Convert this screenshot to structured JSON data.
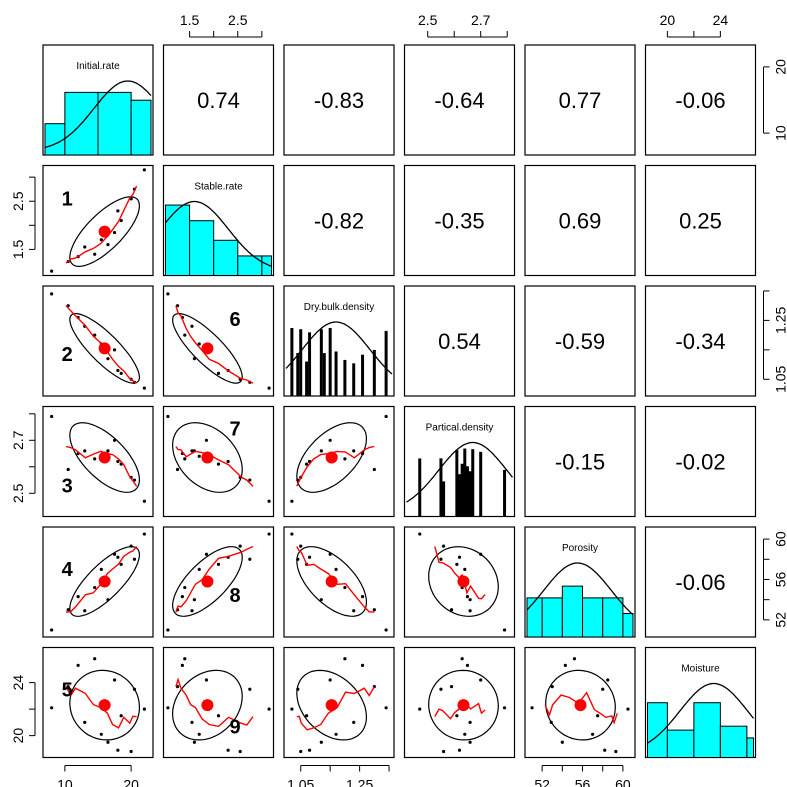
{
  "chart_data": {
    "type": "scatter",
    "title": "",
    "variables": [
      "Initial.rate",
      "Stable.rate",
      "Dry.bulk.density",
      "Partical.density",
      "Porosity",
      "Moisture"
    ],
    "correlations": [
      [
        null,
        0.74,
        -0.83,
        -0.64,
        0.77,
        -0.06
      ],
      [
        null,
        null,
        -0.82,
        -0.35,
        0.69,
        0.25
      ],
      [
        null,
        null,
        null,
        0.54,
        -0.59,
        -0.34
      ],
      [
        null,
        null,
        null,
        null,
        -0.15,
        -0.02
      ],
      [
        null,
        null,
        null,
        null,
        null,
        -0.06
      ],
      [
        null,
        null,
        null,
        null,
        null,
        null
      ]
    ],
    "correlation_labels": [
      [
        null,
        "0.74",
        "-0.83",
        "-0.64",
        "0.77",
        "-0.06"
      ],
      [
        null,
        null,
        "-0.82",
        "-0.35",
        "0.69",
        "0.25"
      ],
      [
        null,
        null,
        null,
        "0.54",
        "-0.59",
        "-0.34"
      ],
      [
        null,
        null,
        null,
        null,
        "-0.15",
        "-0.02"
      ],
      [
        null,
        null,
        null,
        null,
        null,
        "-0.06"
      ],
      [
        null,
        null,
        null,
        null,
        null,
        null
      ]
    ],
    "panel_numbers": [
      {
        "row": 1,
        "col": 0,
        "label": "1"
      },
      {
        "row": 2,
        "col": 0,
        "label": "2"
      },
      {
        "row": 3,
        "col": 0,
        "label": "3"
      },
      {
        "row": 4,
        "col": 0,
        "label": "4"
      },
      {
        "row": 5,
        "col": 0,
        "label": "5"
      },
      {
        "row": 2,
        "col": 1,
        "label": "6"
      },
      {
        "row": 3,
        "col": 1,
        "label": "7"
      },
      {
        "row": 4,
        "col": 1,
        "label": "8"
      },
      {
        "row": 5,
        "col": 1,
        "label": "9"
      }
    ],
    "ranges": [
      [
        7,
        23
      ],
      [
        1.0,
        3.2
      ],
      [
        1.0,
        1.36
      ],
      [
        2.42,
        2.82
      ],
      [
        50.5,
        61
      ],
      [
        18.5,
        26.5
      ]
    ],
    "ticks": [
      {
        "values": [
          10,
          20
        ],
        "labels": [
          "10",
          "20"
        ]
      },
      {
        "values": [
          1.5,
          2.0,
          2.5,
          3.0
        ],
        "labels": [
          "1.5",
          "",
          "2.5",
          ""
        ]
      },
      {
        "values": [
          1.05,
          1.15,
          1.25,
          1.35
        ],
        "labels": [
          "1.05",
          "",
          "1.25",
          ""
        ]
      },
      {
        "values": [
          2.5,
          2.6,
          2.7,
          2.8
        ],
        "labels": [
          "2.5",
          "",
          "2.7",
          ""
        ]
      },
      {
        "values": [
          52,
          54,
          56,
          58,
          60
        ],
        "labels": [
          "52",
          "",
          "56",
          "",
          "60"
        ]
      },
      {
        "values": [
          20,
          22,
          24
        ],
        "labels": [
          "20",
          "",
          "24"
        ]
      }
    ],
    "axis_placement": {
      "bottom": [
        0,
        2,
        4
      ],
      "top": [
        1,
        3,
        5
      ],
      "left": [
        1,
        3,
        5
      ],
      "right": [
        0,
        2,
        4
      ]
    },
    "observations": [
      {
        "Initial.rate": 8.0,
        "Stable.rate": 1.05,
        "Dry.bulk.density": 1.34,
        "Partical.density": 2.79,
        "Porosity": 51.0,
        "Moisture": 22.1
      },
      {
        "Initial.rate": 10.5,
        "Stable.rate": 1.25,
        "Dry.bulk.density": 1.3,
        "Partical.density": 2.59,
        "Porosity": 53.0,
        "Moisture": 23.7
      },
      {
        "Initial.rate": 12.0,
        "Stable.rate": 1.35,
        "Dry.bulk.density": 1.26,
        "Partical.density": 2.65,
        "Porosity": 54.3,
        "Moisture": 25.3
      },
      {
        "Initial.rate": 13.0,
        "Stable.rate": 1.55,
        "Dry.bulk.density": 1.23,
        "Partical.density": 2.66,
        "Porosity": 52.9,
        "Moisture": 21.0
      },
      {
        "Initial.rate": 14.5,
        "Stable.rate": 1.4,
        "Dry.bulk.density": 1.2,
        "Partical.density": 2.63,
        "Porosity": 55.2,
        "Moisture": 25.8
      },
      {
        "Initial.rate": 15.5,
        "Stable.rate": 1.7,
        "Dry.bulk.density": 1.17,
        "Partical.density": 2.64,
        "Porosity": 57.0,
        "Moisture": 20.1
      },
      {
        "Initial.rate": 16.5,
        "Stable.rate": 1.6,
        "Dry.bulk.density": 1.12,
        "Partical.density": 2.66,
        "Porosity": 54.0,
        "Moisture": 19.5
      },
      {
        "Initial.rate": 17.5,
        "Stable.rate": 1.85,
        "Dry.bulk.density": 1.15,
        "Partical.density": 2.7,
        "Porosity": 58.5,
        "Moisture": 24.2
      },
      {
        "Initial.rate": 18.0,
        "Stable.rate": 2.3,
        "Dry.bulk.density": 1.08,
        "Partical.density": 2.62,
        "Porosity": 58.2,
        "Moisture": 18.9
      },
      {
        "Initial.rate": 18.5,
        "Stable.rate": 2.1,
        "Dry.bulk.density": 1.07,
        "Partical.density": 2.61,
        "Porosity": 57.5,
        "Moisture": 21.5
      },
      {
        "Initial.rate": 20.0,
        "Stable.rate": 2.55,
        "Dry.bulk.density": 1.05,
        "Partical.density": 2.56,
        "Porosity": 59.3,
        "Moisture": 18.8
      },
      {
        "Initial.rate": 20.5,
        "Stable.rate": 2.75,
        "Dry.bulk.density": 1.04,
        "Partical.density": 2.55,
        "Porosity": 58.0,
        "Moisture": 23.5
      },
      {
        "Initial.rate": 22.0,
        "Stable.rate": 3.15,
        "Dry.bulk.density": 1.02,
        "Partical.density": 2.47,
        "Porosity": 60.5,
        "Moisture": 22.0
      }
    ],
    "means": [
      16.0,
      1.87,
      1.155,
      2.635,
      55.8,
      22.3
    ],
    "ellipse_corr": [
      [
        1,
        0.74,
        -0.83,
        -0.64,
        0.77,
        -0.06
      ],
      [
        0.74,
        1,
        -0.82,
        -0.35,
        0.69,
        0.25
      ],
      [
        -0.83,
        -0.82,
        1,
        0.54,
        -0.59,
        -0.34
      ],
      [
        -0.64,
        -0.35,
        0.54,
        1,
        -0.15,
        -0.02
      ],
      [
        0.77,
        0.69,
        -0.59,
        -0.15,
        1,
        -0.06
      ],
      [
        -0.06,
        0.25,
        -0.34,
        -0.02,
        -0.06,
        1
      ]
    ],
    "histograms": [
      {
        "breaks": [
          7,
          10,
          15,
          20,
          23
        ],
        "density": [
          0.4,
          0.8,
          0.8,
          0.7
        ],
        "curve_peak": 19.5
      },
      {
        "breaks": [
          1.0,
          1.5,
          2.0,
          2.5,
          3.0,
          3.2
        ],
        "density": [
          0.9,
          0.7,
          0.45,
          0.25,
          0.25
        ],
        "curve_peak": 1.6
      },
      {
        "breaks": [
          1.0,
          1.36
        ],
        "density": [
          0.0
        ],
        "curve_peak": 1.17
      },
      {
        "breaks": [
          2.42,
          2.82
        ],
        "density": [
          0.0
        ],
        "curve_peak": 2.67
      },
      {
        "breaks": [
          50.5,
          52,
          54,
          56,
          58,
          60,
          61
        ],
        "density": [
          0.5,
          0.5,
          0.65,
          0.5,
          0.5,
          0.3
        ],
        "curve_peak": 55.5
      },
      {
        "breaks": [
          18.5,
          20,
          22,
          24,
          26,
          26.5
        ],
        "density": [
          0.7,
          0.35,
          0.7,
          0.4,
          0.25
        ],
        "curve_peak": 23.5
      }
    ],
    "rug_marks": [
      {
        "var": 2,
        "x": [
          1.02,
          1.04,
          1.05,
          1.07,
          1.08,
          1.12,
          1.13,
          1.15,
          1.17,
          1.2,
          1.23,
          1.26,
          1.3,
          1.34
        ]
      },
      {
        "var": 3,
        "x": [
          2.47,
          2.55,
          2.56,
          2.61,
          2.62,
          2.63,
          2.64,
          2.65,
          2.66,
          2.66,
          2.67,
          2.7,
          2.79
        ]
      }
    ],
    "colors": {
      "hist_fill": "#00ffff",
      "smooth_line": "#ff0000",
      "mean_point": "#ff0000",
      "points": "#000000"
    }
  }
}
